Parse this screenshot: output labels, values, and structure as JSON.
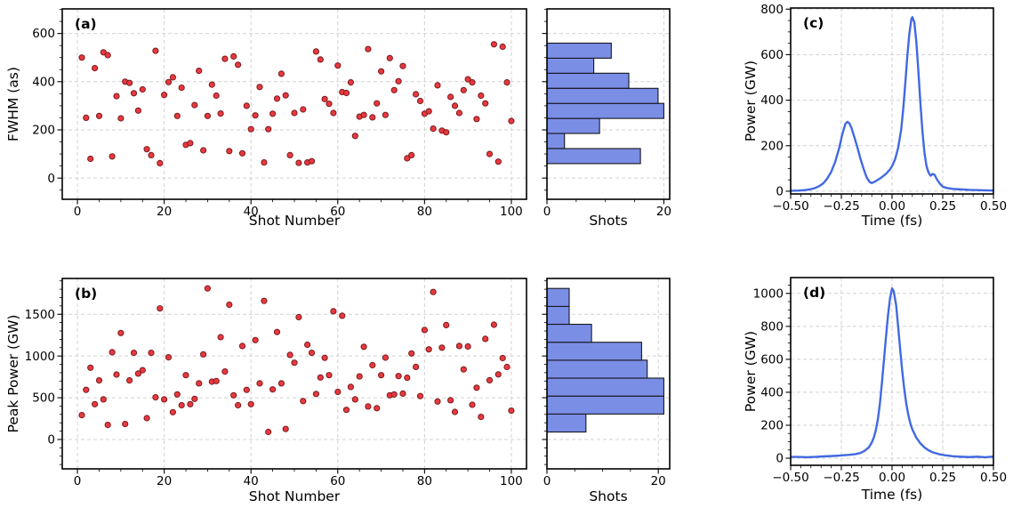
{
  "figure": {
    "background": "#ffffff",
    "colors": {
      "marker_fill": "#e8393f",
      "marker_edge": "#7a1b1f",
      "bar_fill": "#7b8ee6",
      "bar_edge": "#16161d",
      "line": "#4169e1",
      "grid": "#d2d2d2",
      "axis": "#000000",
      "text": "#000000"
    }
  },
  "chart_data": [
    {
      "id": "a",
      "type": "scatter",
      "panel_label": "(a)",
      "xlabel": "Shot Number",
      "ylabel": "FWHM (as)",
      "xlim": [
        -3.5,
        103.5
      ],
      "ylim": [
        -88,
        702
      ],
      "xticks": [
        0,
        20,
        40,
        60,
        80,
        100
      ],
      "yticks": [
        0,
        200,
        400,
        600
      ],
      "x": [
        1,
        2,
        3,
        4,
        5,
        6,
        7,
        8,
        9,
        10,
        11,
        12,
        13,
        14,
        15,
        16,
        17,
        18,
        19,
        20,
        21,
        22,
        23,
        24,
        25,
        26,
        27,
        28,
        29,
        30,
        31,
        32,
        33,
        34,
        35,
        36,
        37,
        38,
        39,
        40,
        41,
        42,
        43,
        44,
        45,
        46,
        47,
        48,
        49,
        50,
        51,
        52,
        53,
        54,
        55,
        56,
        57,
        58,
        59,
        60,
        61,
        62,
        63,
        64,
        65,
        66,
        67,
        68,
        69,
        70,
        71,
        72,
        73,
        74,
        75,
        76,
        77,
        78,
        79,
        80,
        81,
        82,
        83,
        84,
        85,
        86,
        87,
        88,
        89,
        90,
        91,
        92,
        93,
        94,
        95,
        96,
        97,
        98,
        99,
        100
      ],
      "y": [
        500,
        250,
        80,
        456,
        258,
        522,
        510,
        90,
        340,
        248,
        400,
        395,
        352,
        280,
        368,
        120,
        95,
        528,
        62,
        345,
        398,
        418,
        258,
        375,
        138,
        145,
        303,
        445,
        115,
        258,
        388,
        342,
        268,
        495,
        112,
        505,
        470,
        103,
        300,
        203,
        260,
        378,
        65,
        203,
        267,
        330,
        433,
        343,
        95,
        270,
        63,
        285,
        65,
        70,
        525,
        492,
        328,
        308,
        270,
        467,
        357,
        353,
        397,
        175,
        255,
        262,
        535,
        252,
        310,
        443,
        262,
        498,
        365,
        402,
        465,
        82,
        95,
        348,
        320,
        267,
        277,
        205,
        385,
        197,
        190,
        337,
        300,
        270,
        365,
        410,
        397,
        245,
        342,
        310,
        100,
        555,
        68,
        545,
        397,
        237
      ]
    },
    {
      "id": "a_hist",
      "type": "hbar",
      "xlabel": "Shots",
      "xlim": [
        0,
        21
      ],
      "ylim": [
        -88,
        702
      ],
      "xticks": [
        0,
        20
      ],
      "yticks": [
        0,
        200,
        400,
        600
      ],
      "bin_edges": [
        60,
        122.5,
        185,
        247.5,
        310,
        372.5,
        435,
        497.5,
        560
      ],
      "counts_bottom_to_top": [
        16,
        3,
        9,
        20,
        19,
        14,
        8,
        11
      ]
    },
    {
      "id": "c",
      "type": "line",
      "panel_label": "(c)",
      "xlabel": "Time (fs)",
      "ylabel": "Power (GW)",
      "xlim": [
        -0.5,
        0.5
      ],
      "ylim": [
        -12,
        805
      ],
      "xticks": [
        -0.5,
        -0.25,
        0,
        0.25,
        0.5
      ],
      "xtick_labels": [
        "−0.50",
        "−0.25",
        "0.00",
        "0.25",
        "0.50"
      ],
      "yticks": [
        0,
        200,
        400,
        600,
        800
      ],
      "points": [
        [
          -0.5,
          2
        ],
        [
          -0.46,
          3
        ],
        [
          -0.43,
          5
        ],
        [
          -0.4,
          9
        ],
        [
          -0.38,
          14
        ],
        [
          -0.36,
          22
        ],
        [
          -0.34,
          34
        ],
        [
          -0.32,
          55
        ],
        [
          -0.3,
          85
        ],
        [
          -0.28,
          130
        ],
        [
          -0.26,
          192
        ],
        [
          -0.245,
          252
        ],
        [
          -0.23,
          296
        ],
        [
          -0.22,
          305
        ],
        [
          -0.21,
          298
        ],
        [
          -0.2,
          278
        ],
        [
          -0.185,
          235
        ],
        [
          -0.17,
          190
        ],
        [
          -0.155,
          140
        ],
        [
          -0.14,
          98
        ],
        [
          -0.125,
          60
        ],
        [
          -0.11,
          40
        ],
        [
          -0.1,
          36
        ],
        [
          -0.085,
          42
        ],
        [
          -0.07,
          50
        ],
        [
          -0.05,
          62
        ],
        [
          -0.03,
          76
        ],
        [
          -0.01,
          96
        ],
        [
          0,
          110
        ],
        [
          0.015,
          140
        ],
        [
          0.03,
          190
        ],
        [
          0.045,
          270
        ],
        [
          0.055,
          360
        ],
        [
          0.065,
          470
        ],
        [
          0.075,
          590
        ],
        [
          0.085,
          690
        ],
        [
          0.095,
          755
        ],
        [
          0.1,
          765
        ],
        [
          0.11,
          742
        ],
        [
          0.12,
          655
        ],
        [
          0.13,
          525
        ],
        [
          0.14,
          385
        ],
        [
          0.15,
          262
        ],
        [
          0.16,
          168
        ],
        [
          0.17,
          110
        ],
        [
          0.18,
          82
        ],
        [
          0.19,
          68
        ],
        [
          0.2,
          76
        ],
        [
          0.21,
          72
        ],
        [
          0.22,
          54
        ],
        [
          0.235,
          34
        ],
        [
          0.25,
          20
        ],
        [
          0.27,
          14
        ],
        [
          0.3,
          10
        ],
        [
          0.34,
          8
        ],
        [
          0.38,
          6
        ],
        [
          0.42,
          5
        ],
        [
          0.46,
          4
        ],
        [
          0.5,
          3
        ]
      ]
    },
    {
      "id": "b",
      "type": "scatter",
      "panel_label": "(b)",
      "xlabel": "Shot Number",
      "ylabel": "Peak Power (GW)",
      "xlim": [
        -3.5,
        103.5
      ],
      "ylim": [
        -352,
        1929
      ],
      "xticks": [
        0,
        20,
        40,
        60,
        80,
        100
      ],
      "yticks": [
        0,
        500,
        1000,
        1500
      ],
      "x": [
        1,
        2,
        3,
        4,
        5,
        6,
        7,
        8,
        9,
        10,
        11,
        12,
        13,
        14,
        15,
        16,
        17,
        18,
        19,
        20,
        21,
        22,
        23,
        24,
        25,
        26,
        27,
        28,
        29,
        30,
        31,
        32,
        33,
        34,
        35,
        36,
        37,
        38,
        39,
        40,
        41,
        42,
        43,
        44,
        45,
        46,
        47,
        48,
        49,
        50,
        51,
        52,
        53,
        54,
        55,
        56,
        57,
        58,
        59,
        60,
        61,
        62,
        63,
        64,
        65,
        66,
        67,
        68,
        69,
        70,
        71,
        72,
        73,
        74,
        75,
        76,
        77,
        78,
        79,
        80,
        81,
        82,
        83,
        84,
        85,
        86,
        87,
        88,
        89,
        90,
        91,
        92,
        93,
        94,
        95,
        96,
        97,
        98,
        99,
        100
      ],
      "y": [
        292,
        594,
        860,
        423,
        707,
        480,
        175,
        1045,
        778,
        1276,
        185,
        707,
        1038,
        790,
        830,
        256,
        1038,
        505,
        1570,
        480,
        985,
        327,
        540,
        410,
        770,
        423,
        487,
        672,
        1020,
        1810,
        693,
        700,
        1226,
        814,
        1615,
        530,
        410,
        1120,
        594,
        423,
        1190,
        672,
        1660,
        90,
        600,
        1287,
        672,
        125,
        1013,
        920,
        1465,
        460,
        1135,
        1038,
        545,
        743,
        978,
        770,
        1536,
        570,
        1482,
        355,
        630,
        480,
        755,
        1110,
        395,
        890,
        375,
        770,
        980,
        530,
        540,
        760,
        550,
        740,
        1030,
        870,
        520,
        1312,
        1080,
        1767,
        455,
        1100,
        1370,
        470,
        330,
        1120,
        840,
        1115,
        415,
        620,
        270,
        1205,
        710,
        1375,
        780,
        975,
        868,
        345
      ]
    },
    {
      "id": "b_hist",
      "type": "hbar",
      "xlabel": "Shots",
      "xlim": [
        0,
        22.05
      ],
      "ylim": [
        -352,
        1929
      ],
      "xticks": [
        0,
        20
      ],
      "yticks": [
        0,
        500,
        1000,
        1500
      ],
      "bin_edges": [
        90,
        305,
        520,
        735,
        950,
        1165,
        1380,
        1595,
        1810
      ],
      "counts_bottom_to_top": [
        7,
        21,
        21,
        18,
        17,
        8,
        4,
        4
      ]
    },
    {
      "id": "d",
      "type": "line",
      "panel_label": "(d)",
      "xlabel": "Time (fs)",
      "ylabel": "Power (GW)",
      "xlim": [
        -0.5,
        0.5
      ],
      "ylim": [
        -43,
        1096
      ],
      "xticks": [
        -0.5,
        -0.25,
        0,
        0.25,
        0.5
      ],
      "xtick_labels": [
        "−0.50",
        "−0.25",
        "0.00",
        "0.25",
        "0.50"
      ],
      "yticks": [
        0,
        200,
        400,
        600,
        800,
        1000
      ],
      "points": [
        [
          -0.5,
          8
        ],
        [
          -0.46,
          8
        ],
        [
          -0.42,
          6
        ],
        [
          -0.38,
          8
        ],
        [
          -0.34,
          11
        ],
        [
          -0.3,
          13
        ],
        [
          -0.27,
          15
        ],
        [
          -0.24,
          18
        ],
        [
          -0.21,
          21
        ],
        [
          -0.18,
          25
        ],
        [
          -0.155,
          32
        ],
        [
          -0.135,
          45
        ],
        [
          -0.115,
          65
        ],
        [
          -0.1,
          95
        ],
        [
          -0.09,
          125
        ],
        [
          -0.08,
          170
        ],
        [
          -0.07,
          235
        ],
        [
          -0.06,
          330
        ],
        [
          -0.05,
          455
        ],
        [
          -0.04,
          595
        ],
        [
          -0.03,
          735
        ],
        [
          -0.02,
          865
        ],
        [
          -0.01,
          970
        ],
        [
          0,
          1030
        ],
        [
          0.008,
          1015
        ],
        [
          0.02,
          930
        ],
        [
          0.03,
          800
        ],
        [
          0.04,
          662
        ],
        [
          0.05,
          532
        ],
        [
          0.06,
          422
        ],
        [
          0.07,
          332
        ],
        [
          0.08,
          264
        ],
        [
          0.09,
          213
        ],
        [
          0.1,
          175
        ],
        [
          0.12,
          124
        ],
        [
          0.14,
          90
        ],
        [
          0.16,
          65
        ],
        [
          0.18,
          48
        ],
        [
          0.2,
          36
        ],
        [
          0.23,
          25
        ],
        [
          0.26,
          18
        ],
        [
          0.3,
          12
        ],
        [
          0.34,
          9
        ],
        [
          0.38,
          7
        ],
        [
          0.42,
          9
        ],
        [
          0.46,
          6
        ],
        [
          0.5,
          10
        ]
      ]
    }
  ]
}
